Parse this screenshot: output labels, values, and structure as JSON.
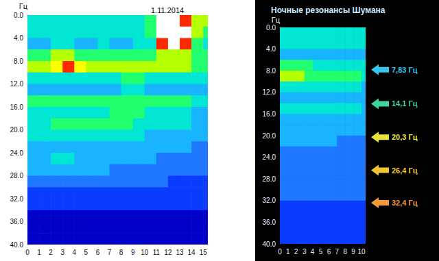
{
  "chart_data": [
    {
      "type": "heatmap",
      "title": "1.11.2014",
      "y_label": "Гц",
      "grid": false,
      "xlim": [
        0,
        15.4
      ],
      "xticks": [
        0,
        1,
        2,
        3,
        4,
        5,
        6,
        7,
        8,
        9,
        10,
        11,
        12,
        13,
        14,
        15
      ],
      "ylim": [
        0,
        40
      ],
      "yticks": [
        {
          "value": 0,
          "label": "0.0"
        },
        {
          "value": 4,
          "label": "4.0"
        },
        {
          "value": 8,
          "label": "8.0"
        },
        {
          "value": 12,
          "label": "12.0"
        },
        {
          "value": 16,
          "label": "16.0"
        },
        {
          "value": 20,
          "label": "20.0"
        },
        {
          "value": 24,
          "label": "24.0"
        },
        {
          "value": 28,
          "label": "28.0"
        },
        {
          "value": 32,
          "label": "32.0"
        },
        {
          "value": 36,
          "label": "36.0"
        },
        {
          "value": 40,
          "label": "40.0"
        }
      ],
      "x_bins": [
        0,
        1,
        2,
        3,
        4,
        5,
        6,
        7,
        8,
        9,
        10,
        11,
        12,
        13,
        14,
        15,
        15.4
      ],
      "y_bins": [
        0,
        2,
        4,
        6,
        8,
        10,
        12,
        14,
        16,
        18,
        20,
        22,
        24,
        26,
        28,
        30,
        32,
        34,
        36,
        38,
        40
      ],
      "zlim": [
        0,
        10
      ],
      "cells": [
        [
          5,
          5,
          5,
          5,
          5,
          5,
          5,
          5,
          5,
          5,
          6,
          10,
          10,
          9,
          7,
          7
        ],
        [
          5,
          5,
          5,
          5,
          5,
          5,
          5,
          5,
          5,
          5,
          6,
          10,
          10,
          10,
          7,
          6
        ],
        [
          4,
          4,
          5,
          5,
          4,
          4,
          5,
          4,
          4,
          5,
          5,
          9,
          10,
          9,
          6,
          5
        ],
        [
          6,
          6,
          7,
          7,
          6,
          6,
          6,
          6,
          6,
          6,
          6,
          7,
          7,
          7,
          6,
          6
        ],
        [
          7,
          7,
          8,
          9,
          8,
          7,
          7,
          7,
          7,
          7,
          7,
          7,
          7,
          7,
          6,
          6
        ],
        [
          5,
          5,
          5,
          5,
          5,
          5,
          5,
          5,
          6,
          6,
          5,
          5,
          5,
          5,
          5,
          5
        ],
        [
          4,
          4,
          4,
          4,
          4,
          4,
          4,
          4,
          5,
          5,
          4,
          4,
          4,
          4,
          4,
          4
        ],
        [
          6,
          6,
          6,
          6,
          6,
          6,
          6,
          6,
          6,
          6,
          6,
          6,
          6,
          6,
          5,
          5
        ],
        [
          5,
          5,
          5,
          5,
          5,
          5,
          5,
          6,
          6,
          6,
          5,
          5,
          5,
          5,
          4,
          4
        ],
        [
          5,
          5,
          6,
          6,
          6,
          6,
          6,
          6,
          6,
          5,
          5,
          5,
          5,
          5,
          4,
          4
        ],
        [
          5,
          5,
          5,
          5,
          5,
          5,
          5,
          5,
          5,
          5,
          4,
          4,
          4,
          4,
          4,
          4
        ],
        [
          4,
          4,
          4,
          4,
          4,
          4,
          4,
          4,
          4,
          4,
          4,
          4,
          4,
          4,
          3,
          3
        ],
        [
          4,
          4,
          5,
          5,
          4,
          4,
          4,
          4,
          4,
          4,
          4,
          3,
          3,
          3,
          3,
          3
        ],
        [
          4,
          4,
          4,
          4,
          4,
          4,
          4,
          3,
          3,
          3,
          3,
          3,
          3,
          3,
          3,
          3
        ],
        [
          3,
          3,
          3,
          3,
          3,
          3,
          3,
          3,
          3,
          3,
          3,
          3,
          2,
          2,
          2,
          2
        ],
        [
          2,
          2,
          2,
          2,
          2,
          2,
          2,
          2,
          2,
          2,
          2,
          2,
          2,
          2,
          2,
          2
        ],
        [
          2,
          2,
          2,
          2,
          2,
          2,
          2,
          2,
          2,
          2,
          2,
          2,
          2,
          2,
          2,
          2
        ],
        [
          1,
          1,
          1,
          1,
          1,
          1,
          1,
          1,
          1,
          1,
          1,
          1,
          1,
          1,
          1,
          1
        ],
        [
          1,
          1,
          1,
          1,
          1,
          1,
          1,
          1,
          1,
          1,
          1,
          1,
          1,
          1,
          1,
          1
        ],
        [
          1,
          1,
          1,
          1,
          1,
          1,
          1,
          1,
          1,
          1,
          1,
          1,
          1,
          1,
          1,
          1
        ]
      ]
    },
    {
      "type": "heatmap",
      "title": "Ночные резонансы Шумана",
      "y_label": "Гц",
      "grid": false,
      "xlim": [
        0,
        10.5
      ],
      "xticks": [
        0,
        1,
        2,
        3,
        4,
        5,
        6,
        7,
        8,
        9,
        10
      ],
      "ylim": [
        0,
        40
      ],
      "yticks": [
        {
          "value": 0,
          "label": "0.0"
        },
        {
          "value": 4,
          "label": "4.0"
        },
        {
          "value": 8,
          "label": "8.0"
        },
        {
          "value": 12,
          "label": "12.0"
        },
        {
          "value": 16,
          "label": "16.0"
        },
        {
          "value": 20,
          "label": "20.0"
        },
        {
          "value": 24,
          "label": "24.0"
        },
        {
          "value": 28,
          "label": "28.0"
        },
        {
          "value": 32,
          "label": "32.0"
        },
        {
          "value": 36,
          "label": "36.0"
        },
        {
          "value": 40,
          "label": "40.0"
        }
      ],
      "x_bins": [
        0,
        1,
        2,
        3,
        4,
        5,
        6,
        7,
        8,
        9,
        10,
        10.5
      ],
      "y_bins": [
        0,
        2,
        4,
        6,
        8,
        10,
        12,
        14,
        16,
        18,
        20,
        22,
        24,
        26,
        28,
        30,
        32,
        34,
        36,
        38,
        40
      ],
      "zlim": [
        0,
        10
      ],
      "cells": [
        [
          5,
          5,
          5,
          5,
          5,
          5,
          5,
          5,
          5,
          5,
          5
        ],
        [
          5,
          5,
          5,
          5,
          5,
          5,
          5,
          5,
          5,
          5,
          5
        ],
        [
          4,
          4,
          4,
          4,
          4,
          4,
          4,
          4,
          4,
          4,
          4
        ],
        [
          6,
          6,
          6,
          6,
          5,
          5,
          5,
          5,
          5,
          5,
          5
        ],
        [
          7,
          7,
          7,
          6,
          6,
          6,
          6,
          6,
          6,
          6,
          5
        ],
        [
          5,
          5,
          5,
          5,
          5,
          5,
          5,
          5,
          5,
          5,
          4
        ],
        [
          4,
          4,
          4,
          4,
          4,
          4,
          4,
          4,
          4,
          4,
          4
        ],
        [
          5,
          5,
          5,
          5,
          5,
          5,
          5,
          5,
          5,
          5,
          4
        ],
        [
          4,
          4,
          4,
          4,
          4,
          4,
          4,
          4,
          4,
          4,
          4
        ],
        [
          4,
          4,
          4,
          4,
          4,
          4,
          4,
          4,
          4,
          4,
          4
        ],
        [
          4,
          4,
          4,
          4,
          4,
          4,
          4,
          3,
          3,
          3,
          3
        ],
        [
          3,
          3,
          3,
          3,
          3,
          3,
          3,
          3,
          3,
          3,
          3
        ],
        [
          3,
          3,
          3,
          3,
          3,
          3,
          3,
          3,
          3,
          3,
          3
        ],
        [
          3,
          3,
          3,
          3,
          3,
          3,
          3,
          3,
          3,
          3,
          3
        ],
        [
          3,
          3,
          3,
          3,
          3,
          3,
          3,
          3,
          3,
          3,
          3
        ],
        [
          3,
          3,
          3,
          3,
          3,
          3,
          3,
          3,
          3,
          3,
          3
        ],
        [
          2,
          2,
          2,
          2,
          2,
          2,
          2,
          2,
          2,
          2,
          2
        ],
        [
          2,
          2,
          2,
          2,
          2,
          2,
          2,
          2,
          2,
          2,
          2
        ],
        [
          2,
          2,
          2,
          2,
          2,
          2,
          2,
          2,
          2,
          2,
          2
        ],
        [
          2,
          2,
          2,
          2,
          2,
          2,
          2,
          2,
          2,
          2,
          2
        ]
      ],
      "annotations": [
        {
          "text": "7,83 Гц",
          "y": 7.83,
          "color": "#35c4f0"
        },
        {
          "text": "14,1 Гц",
          "y": 14.1,
          "color": "#3fd49a"
        },
        {
          "text": "20,3 Гц",
          "y": 20.3,
          "color": "#e8e23a"
        },
        {
          "text": "26,4 Гц",
          "y": 26.4,
          "color": "#f2c431"
        },
        {
          "text": "32,4 Гц",
          "y": 32.4,
          "color": "#f29a3a"
        }
      ]
    }
  ]
}
